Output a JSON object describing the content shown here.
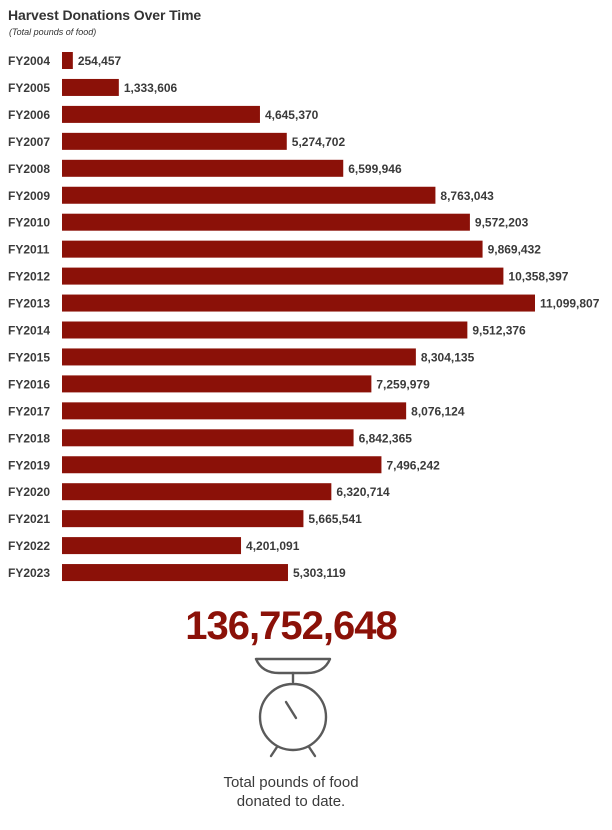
{
  "title": "Harvest Donations Over Time",
  "subtitle": "(Total pounds of food)",
  "chart_data": {
    "type": "bar",
    "orientation": "horizontal",
    "title": "Harvest Donations Over Time",
    "subtitle": "(Total pounds of food)",
    "categories": [
      "FY2004",
      "FY2005",
      "FY2006",
      "FY2007",
      "FY2008",
      "FY2009",
      "FY2010",
      "FY2011",
      "FY2012",
      "FY2013",
      "FY2014",
      "FY2015",
      "FY2016",
      "FY2017",
      "FY2018",
      "FY2019",
      "FY2020",
      "FY2021",
      "FY2022",
      "FY2023"
    ],
    "values": [
      254457,
      1333606,
      4645370,
      5274702,
      6599946,
      8763043,
      9572203,
      9869432,
      10358397,
      11099807,
      9512376,
      8304135,
      7259979,
      8076124,
      6842365,
      7496242,
      6320714,
      5665541,
      4201091,
      5303119
    ],
    "value_labels": [
      "254,457",
      "1,333,606",
      "4,645,370",
      "5,274,702",
      "6,599,946",
      "8,763,043",
      "9,572,203",
      "9,869,432",
      "10,358,397",
      "11,099,807",
      "9,512,376",
      "8,304,135",
      "7,259,979",
      "8,076,124",
      "6,842,365",
      "7,496,242",
      "6,320,714",
      "5,665,541",
      "4,201,091",
      "5,303,119"
    ],
    "xlim": [
      0,
      11099807
    ],
    "grid": false,
    "legend": "none",
    "bar_color": "#8b1108"
  },
  "summary": {
    "total": "136,752,648",
    "caption_line1": "Total pounds of food",
    "caption_line2": "donated to date."
  },
  "icons": {
    "scale": "kitchen-scale-icon"
  },
  "colors": {
    "accent": "#8b1108",
    "text": "#3a3a3a",
    "icon_stroke": "#5a5a5a"
  }
}
